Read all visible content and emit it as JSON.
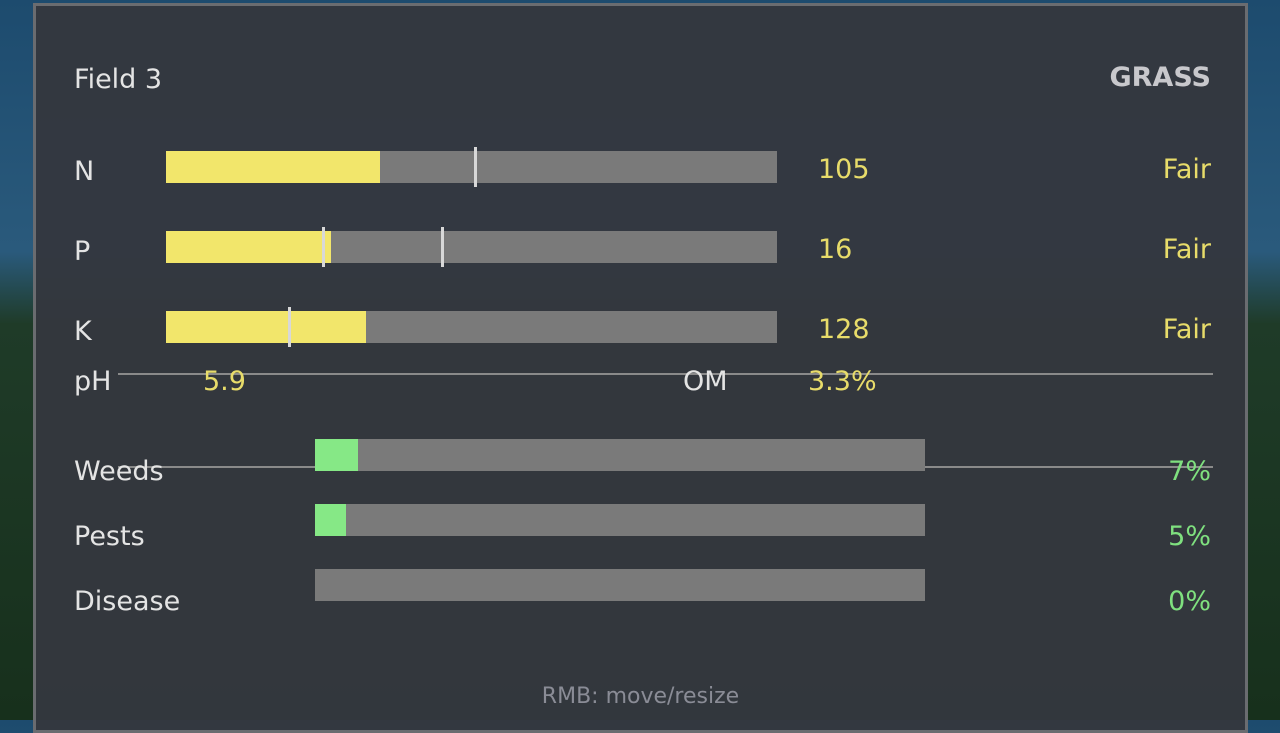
{
  "field": {
    "title": "Field 3",
    "crop": "GRASS"
  },
  "nutrients": [
    {
      "label": "N",
      "value": "105",
      "status": "Fair",
      "fill": 0.35,
      "markers": [
        0.504
      ]
    },
    {
      "label": "P",
      "value": "16",
      "status": "Fair",
      "fill": 0.27,
      "markers": [
        0.255,
        0.45
      ]
    },
    {
      "label": "K",
      "value": "128",
      "status": "Fair",
      "fill": 0.327,
      "markers": [
        0.2
      ]
    }
  ],
  "soil": {
    "ph_label": "pH",
    "ph_value": "5.9",
    "om_label": "OM",
    "om_value": "3.3%"
  },
  "threats": [
    {
      "label": "Weeds",
      "value": "7%",
      "fill": 0.07
    },
    {
      "label": "Pests",
      "value": "5%",
      "fill": 0.05
    },
    {
      "label": "Disease",
      "value": "0%",
      "fill": 0
    }
  ],
  "hint": "RMB: move/resize",
  "colors": {
    "nutrient_fill": "#f2e66b",
    "threat_fill": "#86e886",
    "bar_bg": "#7a7a7a",
    "value_yellow": "#e8dc6a",
    "value_green": "#7fe07f"
  }
}
